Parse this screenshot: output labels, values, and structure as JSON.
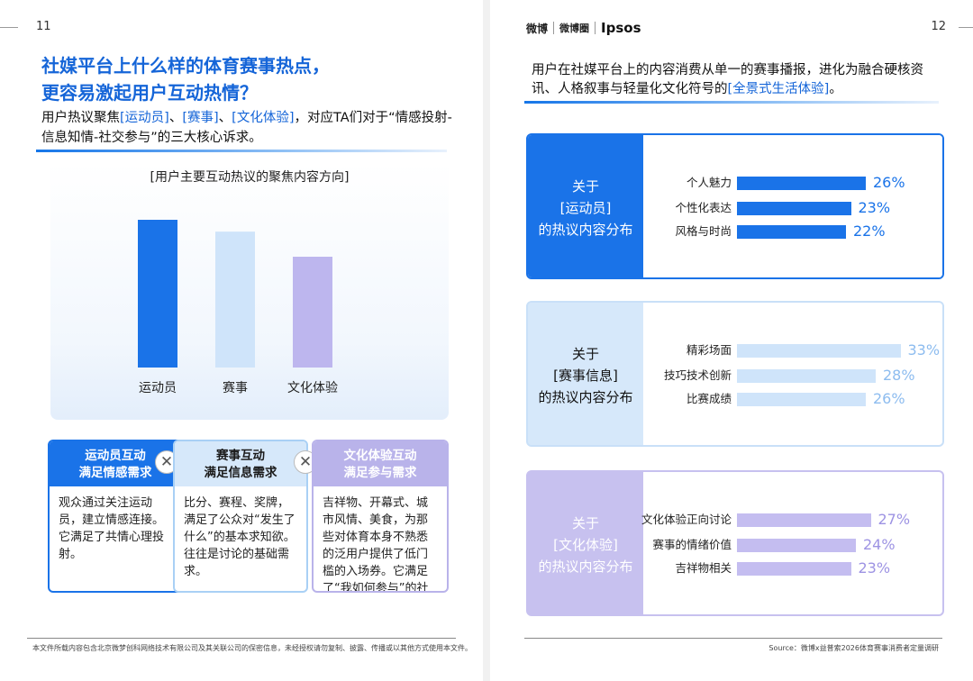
{
  "left": {
    "page_number": "11",
    "title_line1": "社媒平台上什么样的体育赛事热点，",
    "title_line2": "更容易激起用户互动热情？",
    "subtitle": {
      "part1": "用户热议聚焦",
      "tag1": "[运动员]",
      "sep1": "、",
      "tag2": "[赛事]",
      "sep2": "、",
      "tag3": "[文化体验]",
      "part2": "，对应TA们对于“情感投射-信息知情-社交参与”的三大核心诉求。"
    },
    "chart_title": "[用户主要互动热议的聚焦内容方向]",
    "boxes": [
      {
        "head1": "运动员互动",
        "head2": "满足情感需求",
        "body": "观众通过关注运动员，建立情感连接。它满足了共情心理投射。"
      },
      {
        "head1": "赛事互动",
        "head2": "满足信息需求",
        "body": "比分、赛程、奖牌，满足了公众对“发生了什么”的基本求知欲。往往是讨论的基础需求。"
      },
      {
        "head1": "文化体验互动",
        "head2": "满足参与需求",
        "body": "吉祥物、开幕式、城市风情、美食，为那些对体育本身不熟悉的泛用户提供了低门槛的入场券。它满足了“我如何参与”的社交需求。"
      }
    ],
    "x_symbol": "✕",
    "footer": "本文件所载内容包含北京微梦创科网络技术有限公司及其关联公司的保密信息，未经授权请勿复制、披露、传播或以其他方式使用本文件。"
  },
  "chart_data": {
    "type": "bar",
    "title": "[用户主要互动热议的聚焦内容方向]",
    "categories": [
      "运动员",
      "赛事",
      "文化体验"
    ],
    "values": [
      100,
      92,
      75
    ],
    "ylim": [
      0,
      100
    ],
    "colors": [
      "#1a73e8",
      "#cfe4fa",
      "#bdb6ee"
    ],
    "grid": false,
    "xlabel": "",
    "ylabel": ""
  },
  "right": {
    "page_number": "12",
    "logos": {
      "weibo": "微博",
      "circle": "微博圈",
      "ipsos": "Ipsos"
    },
    "desc_part1": "用户在社媒平台上的内容消费从单一的赛事播报，进化为融合硬核资讯、人格叙事与轻量化文化符号的",
    "desc_tag": "[全景式生活体验]",
    "desc_end": "。",
    "sections": [
      {
        "line1": "关于",
        "line2": "[运动员]",
        "line3": "的热议内容分布",
        "items": [
          {
            "label": "个人魅力",
            "value": 26,
            "text": "26%"
          },
          {
            "label": "个性化表达",
            "value": 23,
            "text": "23%"
          },
          {
            "label": "风格与时尚",
            "value": 22,
            "text": "22%"
          }
        ]
      },
      {
        "line1": "关于",
        "line2": "[赛事信息]",
        "line3": "的热议内容分布",
        "items": [
          {
            "label": "精彩场面",
            "value": 33,
            "text": "33%"
          },
          {
            "label": "技巧技术创新",
            "value": 28,
            "text": "28%"
          },
          {
            "label": "比赛成绩",
            "value": 26,
            "text": "26%"
          }
        ]
      },
      {
        "line1": "关于",
        "line2": "[文化体验]",
        "line3": "的热议内容分布",
        "items": [
          {
            "label": "文化体验正向讨论",
            "value": 27,
            "text": "27%"
          },
          {
            "label": "赛事的情绪价值",
            "value": 24,
            "text": "24%"
          },
          {
            "label": "吉祥物相关",
            "value": 23,
            "text": "23%"
          }
        ]
      }
    ],
    "footer": "Source：微博x益普索2026体育赛事消费者定量调研"
  }
}
